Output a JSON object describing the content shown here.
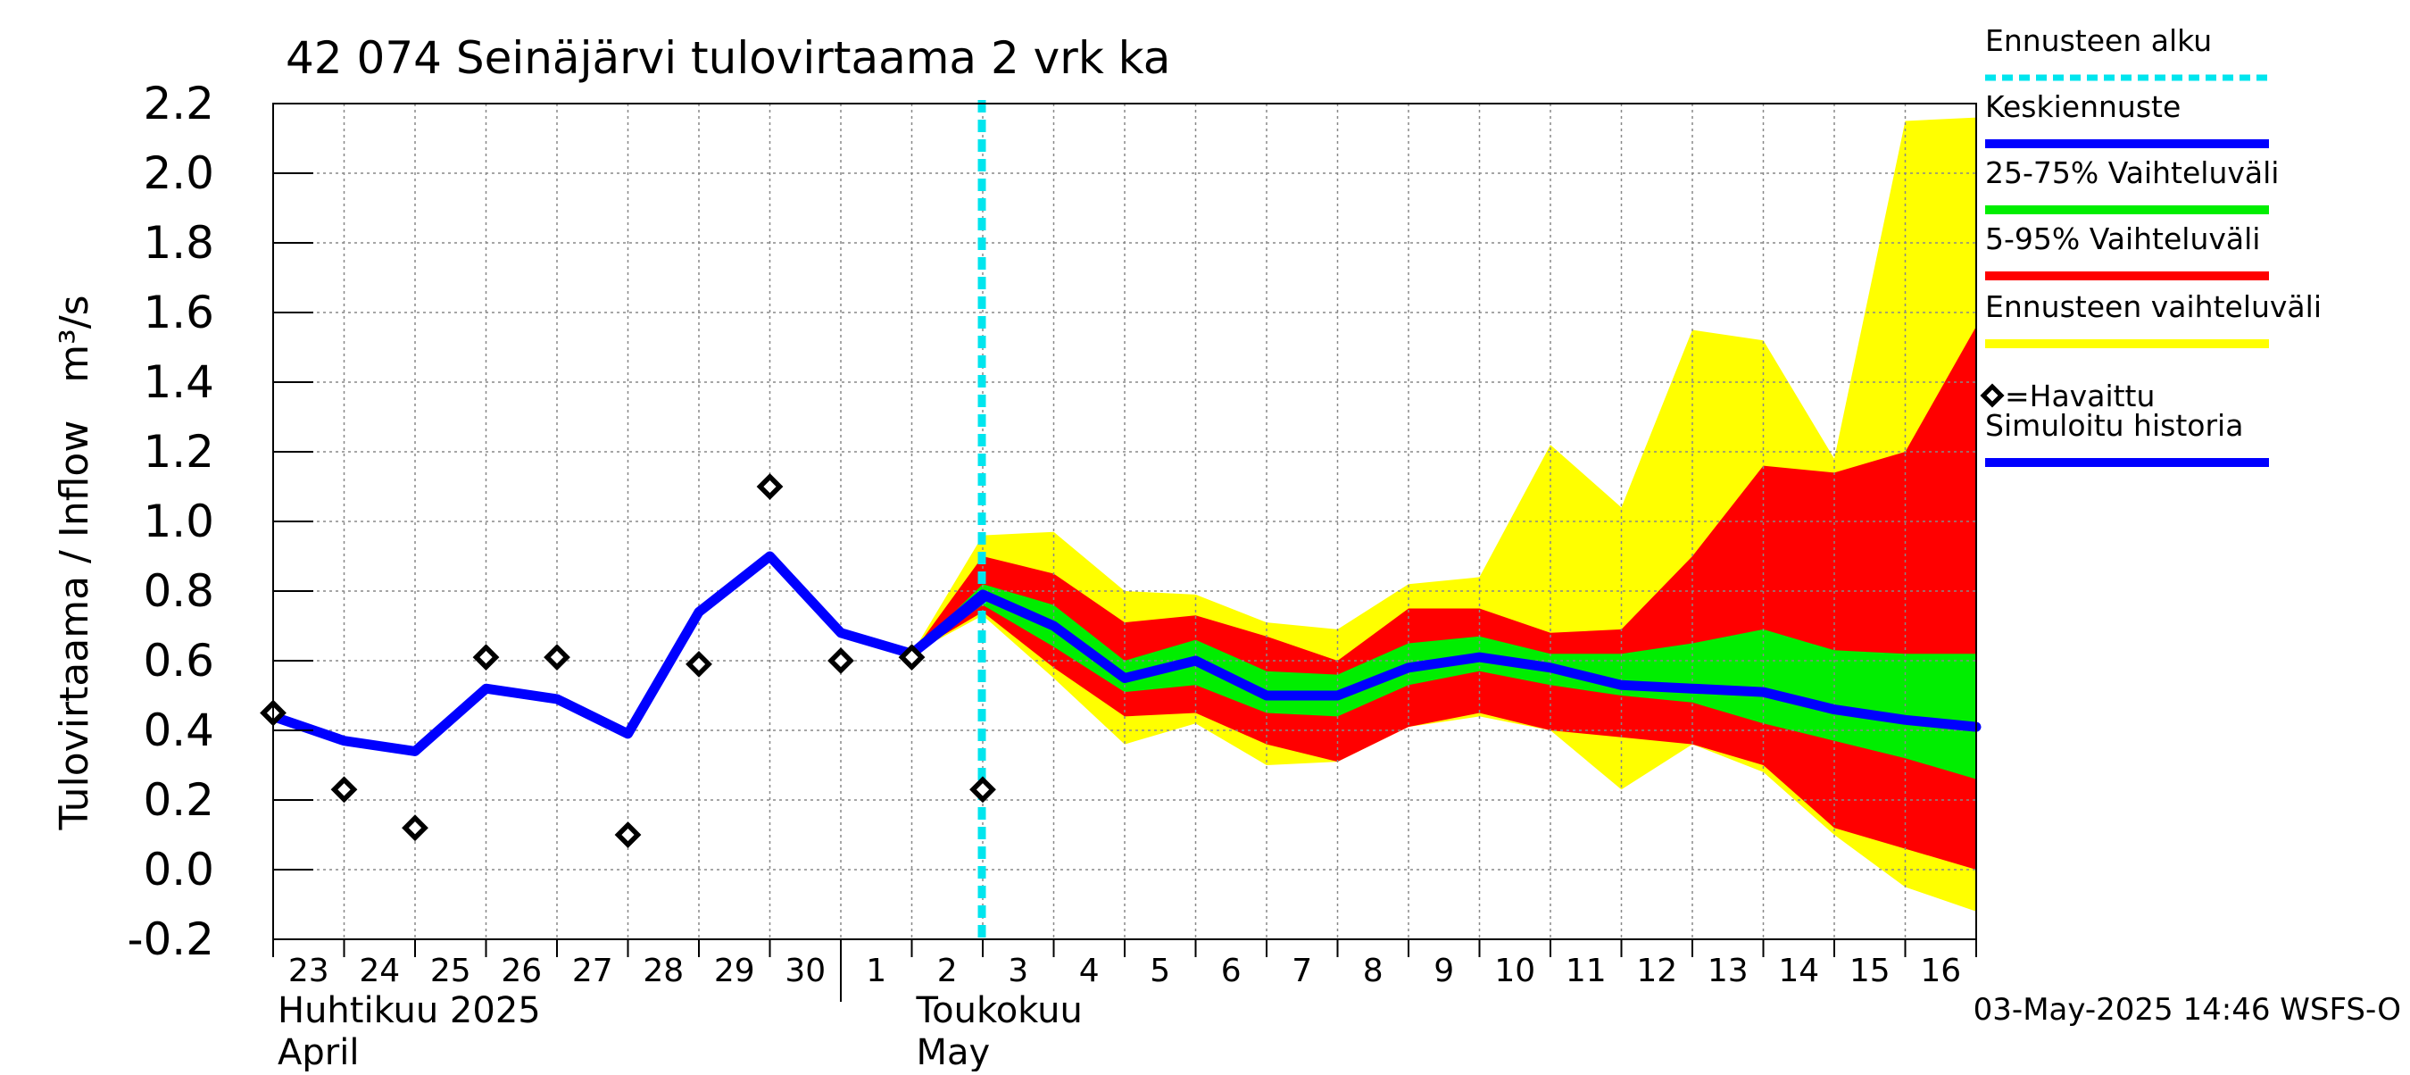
{
  "chart_data": {
    "type": "line",
    "title": "42 074 Seinäjärvi tulovirtaama 2 vrk ka",
    "ylabel": "Tulovirtaama / Inflow   m³/s",
    "ylim": [
      -0.2,
      2.2
    ],
    "yticks": [
      -0.2,
      0.0,
      0.2,
      0.4,
      0.6,
      0.8,
      1.0,
      1.2,
      1.4,
      1.6,
      1.8,
      2.0,
      2.2
    ],
    "ytick_labels": [
      "-0.2",
      "0.0",
      "0.2",
      "0.4",
      "0.6",
      "0.8",
      "1.0",
      "1.2",
      "1.4",
      "1.6",
      "1.8",
      "2.0",
      "2.2"
    ],
    "xlim": [
      0,
      24
    ],
    "x_tick_labels": [
      "23",
      "24",
      "25",
      "26",
      "27",
      "28",
      "29",
      "30",
      "1",
      "2",
      "3",
      "4",
      "5",
      "6",
      "7",
      "8",
      "9",
      "10",
      "11",
      "12",
      "13",
      "14",
      "15",
      "16"
    ],
    "month_labels": [
      {
        "fi": "Huhtikuu  2025",
        "en": "April",
        "x": 0
      },
      {
        "fi": "Toukokuu",
        "en": "May",
        "x": 9
      }
    ],
    "month_separator_x": 8,
    "forecast_start_x": 10,
    "grid": true,
    "timestamp": "03-May-2025 14:46 WSFS-O",
    "legend": {
      "placement": "right",
      "items": [
        {
          "label": "Ennusteen alku",
          "color": "#00e5ee",
          "style": "dashed"
        },
        {
          "label": "Keskiennuste",
          "color": "#0000ff",
          "style": "line"
        },
        {
          "label": "25-75% Vaihteluväli",
          "color": "#00ee00",
          "style": "line"
        },
        {
          "label": "5-95% Vaihteluväli",
          "color": "#ff0000",
          "style": "line"
        },
        {
          "label": "Ennusteen vaihteluväli",
          "color": "#ffff00",
          "style": "line"
        },
        {
          "label": "=Havaittu",
          "color": "#000000",
          "style": "diamond"
        },
        {
          "label": "Simuloitu historia",
          "color": "#0000ff",
          "style": "line"
        }
      ]
    },
    "colors": {
      "forecast_start": "#00e5ee",
      "median": "#0000ff",
      "band_25_75": "#00ee00",
      "band_5_95": "#ff0000",
      "band_full": "#ffff00",
      "history": "#0000ff",
      "observed": "#000000",
      "grid": "#888888"
    },
    "series": [
      {
        "name": "Simuloitu historia",
        "x": [
          0,
          1,
          2,
          3,
          4,
          5,
          6,
          7,
          8,
          9,
          10
        ],
        "values": [
          0.44,
          0.37,
          0.34,
          0.52,
          0.49,
          0.39,
          0.74,
          0.9,
          0.68,
          0.62,
          0.78
        ]
      },
      {
        "name": "Keskiennuste",
        "x": [
          9,
          10,
          11,
          12,
          13,
          14,
          15,
          16,
          17,
          18,
          19,
          20,
          21,
          22,
          23,
          24
        ],
        "values": [
          0.62,
          0.79,
          0.7,
          0.55,
          0.6,
          0.5,
          0.5,
          0.58,
          0.61,
          0.58,
          0.53,
          0.52,
          0.51,
          0.46,
          0.43,
          0.41
        ]
      },
      {
        "name": "25-75% Vaihteluväli",
        "x": [
          9,
          10,
          11,
          12,
          13,
          14,
          15,
          16,
          17,
          18,
          19,
          20,
          21,
          22,
          23,
          24
        ],
        "lower": [
          0.62,
          0.76,
          0.64,
          0.51,
          0.53,
          0.45,
          0.44,
          0.53,
          0.57,
          0.53,
          0.5,
          0.48,
          0.42,
          0.37,
          0.32,
          0.26
        ],
        "upper": [
          0.62,
          0.82,
          0.76,
          0.6,
          0.66,
          0.57,
          0.56,
          0.65,
          0.67,
          0.62,
          0.62,
          0.65,
          0.69,
          0.63,
          0.62,
          0.62
        ]
      },
      {
        "name": "5-95% Vaihteluväli",
        "x": [
          9,
          10,
          11,
          12,
          13,
          14,
          15,
          16,
          17,
          18,
          19,
          20,
          21,
          22,
          23,
          24
        ],
        "lower": [
          0.62,
          0.74,
          0.58,
          0.44,
          0.45,
          0.36,
          0.31,
          0.41,
          0.45,
          0.4,
          0.38,
          0.36,
          0.3,
          0.12,
          0.06,
          0.0
        ],
        "upper": [
          0.62,
          0.9,
          0.85,
          0.71,
          0.73,
          0.67,
          0.6,
          0.75,
          0.75,
          0.68,
          0.69,
          0.9,
          1.16,
          1.14,
          1.2,
          1.56
        ]
      },
      {
        "name": "Ennusteen vaihteluväli",
        "x": [
          9,
          10,
          11,
          12,
          13,
          14,
          15,
          16,
          17,
          18,
          19,
          20,
          21,
          22,
          23,
          24
        ],
        "lower": [
          0.62,
          0.73,
          0.55,
          0.36,
          0.42,
          0.3,
          0.31,
          0.41,
          0.44,
          0.4,
          0.23,
          0.36,
          0.28,
          0.1,
          -0.05,
          -0.12
        ],
        "upper": [
          0.62,
          0.96,
          0.97,
          0.8,
          0.79,
          0.71,
          0.69,
          0.82,
          0.84,
          1.22,
          1.04,
          1.55,
          1.52,
          1.18,
          2.15,
          2.16
        ]
      },
      {
        "name": "Havaittu",
        "x": [
          0,
          1,
          2,
          3,
          4,
          5,
          6,
          7,
          8,
          9,
          10
        ],
        "values": [
          0.45,
          0.23,
          0.12,
          0.61,
          0.61,
          0.1,
          0.59,
          1.1,
          0.6,
          0.61,
          0.23
        ]
      }
    ]
  }
}
